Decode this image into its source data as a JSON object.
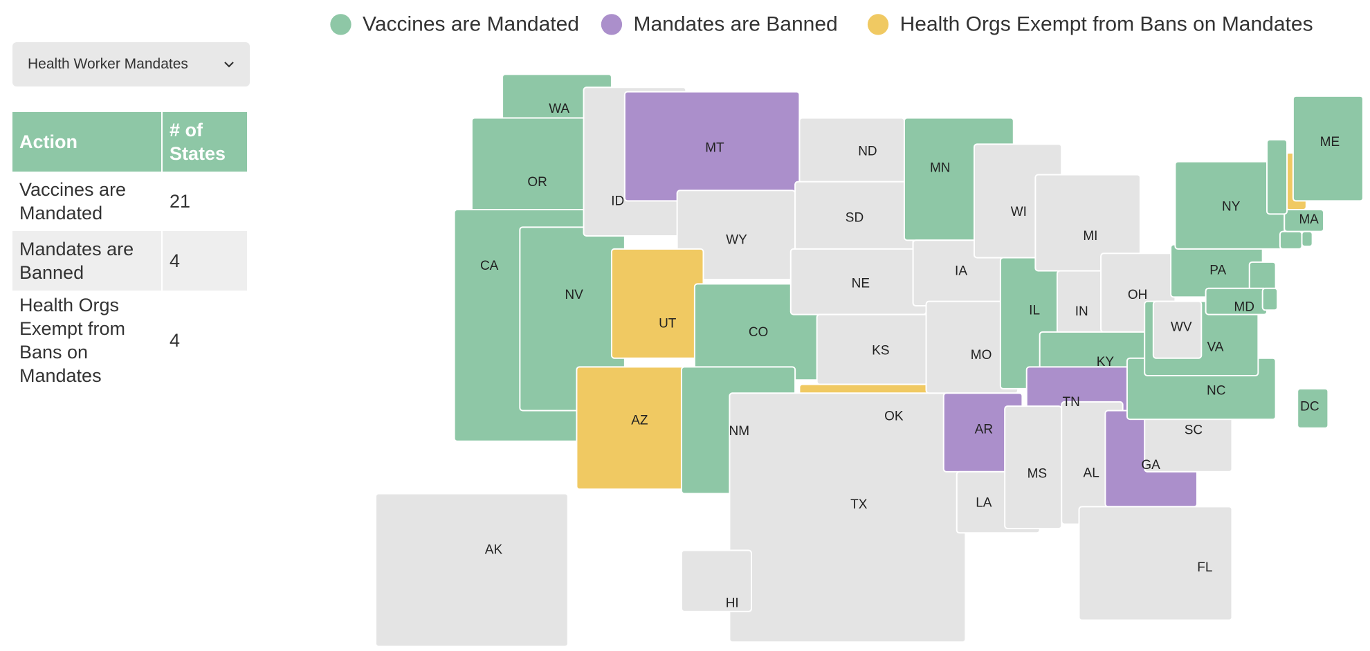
{
  "legend": [
    {
      "name": "Vaccines are Mandated",
      "color": "#8ec7a6"
    },
    {
      "name": "Mandates are Banned",
      "color": "#ab8fcb"
    },
    {
      "name": "Health Orgs Exempt from Bans on Mandates",
      "color": "#f0c962"
    }
  ],
  "other_color": "#e4e4e4",
  "dropdown": {
    "label": "Health Worker Mandates"
  },
  "table": {
    "header": [
      "Action",
      "# of States"
    ],
    "rows": [
      [
        "Vaccines are Mandated",
        "21"
      ],
      [
        "Mandates are Banned",
        "4"
      ],
      [
        "Health Orgs Exempt from Bans on Mandates",
        "4"
      ]
    ]
  },
  "states": [
    {
      "label": "WA",
      "category": "Vaccines are Mandated"
    },
    {
      "label": "OR",
      "category": "Vaccines are Mandated"
    },
    {
      "label": "CA",
      "category": "Vaccines are Mandated"
    },
    {
      "label": "NV",
      "category": "Vaccines are Mandated"
    },
    {
      "label": "ID",
      "category": null
    },
    {
      "label": "MT",
      "category": "Mandates are Banned"
    },
    {
      "label": "WY",
      "category": null
    },
    {
      "label": "UT",
      "category": "Health Orgs Exempt from Bans on Mandates"
    },
    {
      "label": "AZ",
      "category": "Health Orgs Exempt from Bans on Mandates"
    },
    {
      "label": "CO",
      "category": "Vaccines are Mandated"
    },
    {
      "label": "NM",
      "category": "Vaccines are Mandated"
    },
    {
      "label": "ND",
      "category": null
    },
    {
      "label": "SD",
      "category": null
    },
    {
      "label": "NE",
      "category": null
    },
    {
      "label": "KS",
      "category": null
    },
    {
      "label": "OK",
      "category": "Health Orgs Exempt from Bans on Mandates"
    },
    {
      "label": "TX",
      "category": null
    },
    {
      "label": "MN",
      "category": "Vaccines are Mandated"
    },
    {
      "label": "IA",
      "category": null
    },
    {
      "label": "MO",
      "category": null
    },
    {
      "label": "AR",
      "category": "Mandates are Banned"
    },
    {
      "label": "LA",
      "category": null
    },
    {
      "label": "WI",
      "category": null
    },
    {
      "label": "IL",
      "category": "Vaccines are Mandated"
    },
    {
      "label": "MI",
      "category": null
    },
    {
      "label": "IN",
      "category": null
    },
    {
      "label": "OH",
      "category": null
    },
    {
      "label": "KY",
      "category": "Vaccines are Mandated"
    },
    {
      "label": "TN",
      "category": "Mandates are Banned"
    },
    {
      "label": "MS",
      "category": null
    },
    {
      "label": "AL",
      "category": null
    },
    {
      "label": "GA",
      "category": "Mandates are Banned"
    },
    {
      "label": "FL",
      "category": null
    },
    {
      "label": "SC",
      "category": null
    },
    {
      "label": "NC",
      "category": "Vaccines are Mandated"
    },
    {
      "label": "VA",
      "category": "Vaccines are Mandated"
    },
    {
      "label": "WV",
      "category": null
    },
    {
      "label": "PA",
      "category": "Vaccines are Mandated"
    },
    {
      "label": "NY",
      "category": "Vaccines are Mandated"
    },
    {
      "label": null,
      "category": "Vaccines are Mandated"
    },
    {
      "label": "MD",
      "category": "Vaccines are Mandated"
    },
    {
      "label": null,
      "category": "Vaccines are Mandated"
    },
    {
      "label": null,
      "category": "Vaccines are Mandated"
    },
    {
      "label": "MA",
      "category": "Vaccines are Mandated"
    },
    {
      "label": null,
      "category": "Health Orgs Exempt from Bans on Mandates"
    },
    {
      "label": "ME",
      "category": "Vaccines are Mandated"
    },
    {
      "label": null,
      "category": "Vaccines are Mandated"
    },
    {
      "label": null,
      "category": "Vaccines are Mandated"
    },
    {
      "label": "DC",
      "category": "Vaccines are Mandated"
    },
    {
      "label": "AK",
      "category": null
    },
    {
      "label": "HI",
      "category": null
    }
  ]
}
